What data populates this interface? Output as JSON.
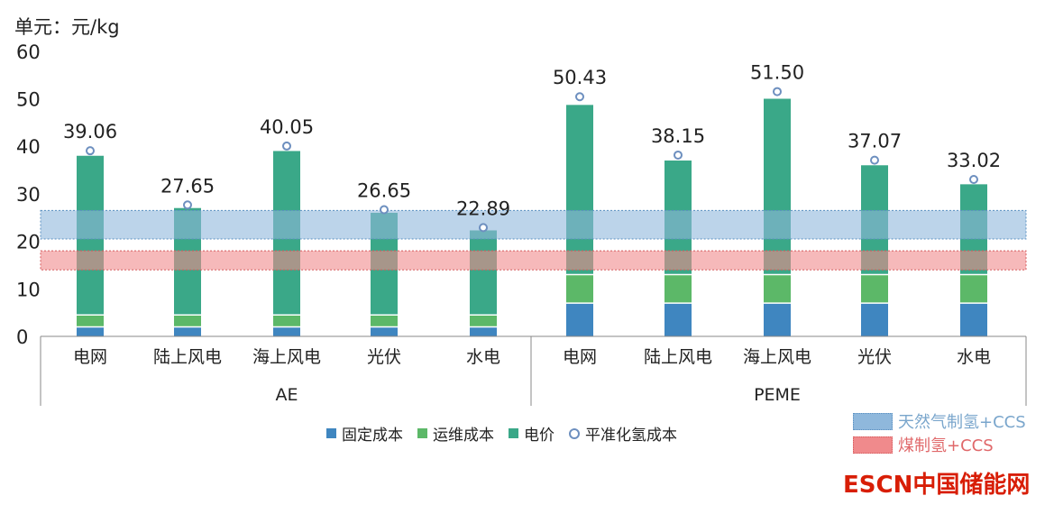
{
  "chart_data": {
    "type": "bar",
    "stacked": true,
    "unit_label": "单元：元/kg",
    "ylim": [
      0,
      60
    ],
    "yticks": [
      0,
      10,
      20,
      30,
      40,
      50,
      60
    ],
    "groups": [
      {
        "name": "AE",
        "categories": [
          "电网",
          "陆上风电",
          "海上风电",
          "光伏",
          "水电"
        ]
      },
      {
        "name": "PEME",
        "categories": [
          "电网",
          "陆上风电",
          "海上风电",
          "光伏",
          "水电"
        ]
      }
    ],
    "series": [
      {
        "name": "固定成本",
        "color": "#3f86c0",
        "values": [
          2.0,
          2.0,
          2.0,
          2.0,
          2.0,
          7.0,
          7.0,
          7.0,
          7.0,
          7.0
        ]
      },
      {
        "name": "运维成本",
        "color": "#5cb868",
        "values": [
          2.5,
          2.5,
          2.5,
          2.5,
          2.5,
          6.0,
          6.0,
          6.0,
          6.0,
          6.0
        ]
      },
      {
        "name": "电价",
        "color": "#3aa888",
        "values": [
          33.5,
          22.5,
          34.5,
          21.5,
          17.8,
          35.7,
          24.0,
          37.0,
          23.0,
          19.0
        ]
      }
    ],
    "lcoh": {
      "name": "平准化氢成本",
      "values": [
        39.06,
        27.65,
        40.05,
        26.65,
        22.89,
        50.43,
        38.15,
        51.5,
        37.07,
        33.02
      ],
      "labels": [
        "39.06",
        "27.65",
        "40.05",
        "26.65",
        "22.89",
        "50.43",
        "38.15",
        "51.50",
        "37.07",
        "33.02"
      ]
    },
    "bands": [
      {
        "name": "天然气制氢+CCS",
        "range": [
          20.5,
          26.5
        ],
        "color": "#8fb8dc",
        "text_color": "#7aa6cc"
      },
      {
        "name": "煤制氢+CCS",
        "range": [
          14,
          18
        ],
        "color": "#f08a8c",
        "text_color": "#e0686a"
      }
    ]
  },
  "legend": [
    "固定成本",
    "运维成本",
    "电价",
    "平准化氢成本"
  ],
  "watermark": {
    "latin": "ESCN",
    "cjk": "中国储能网"
  }
}
